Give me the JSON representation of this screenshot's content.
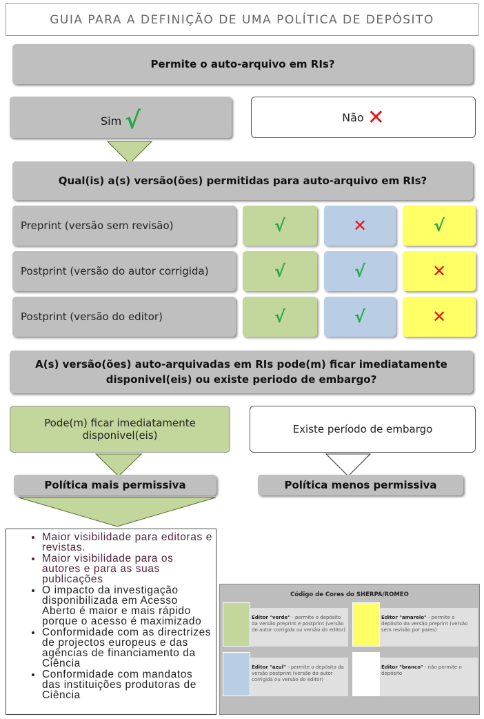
{
  "title": "GUIA PARA A DEFINIÇÃO DE UMA POLÍTICA DE DEPÓSITO",
  "q1": "Permite o auto-arquivo em RIs?",
  "yes": "Sim",
  "no": "Não",
  "check_symbol": "√",
  "cross_symbol": "✕",
  "q2": "Qual(is) a(s) versão(ões) permitidas para auto-arquivo em RIs?",
  "rows": [
    {
      "label": "Preprint (versão sem revisão)",
      "green": "√",
      "blue": "✕",
      "yellow": "√"
    },
    {
      "label": "Postprint (versão do autor corrigida)",
      "green": "√",
      "blue": "√",
      "yellow": "✕"
    },
    {
      "label": "Postprint (versão do editor)",
      "green": "√",
      "blue": "√",
      "yellow": "✕"
    }
  ],
  "q3": "A(s) versão(ões) auto-arquivadas em RIs pode(m) ficar imediatamente disponivel(eis) ou existe periodo de embargo?",
  "immediate": "Pode(m) ficar imediatamente disponivel(eis)",
  "embargo": "Existe período de embargo",
  "policy_more": "Política mais permissiva",
  "policy_less": "Política menos permissiva",
  "benefits": [
    "Maior visibilidade para editoras e revistas.",
    "Maior visibilidade para os autores e para as suas publicações",
    "O impacto da investigação disponibilizada em Acesso Aberto é maior e mais rápido porque o acesso é maximizado",
    "Conformidade com as directrizes de projectos europeus e das agências de financiamento da Ciência",
    "Conformidade com mandatos das instituições produtoras de Ciência"
  ],
  "legend": {
    "title": "Código de Cores do SHERPA/ROMEO",
    "items": [
      {
        "name": "Editor \"verde\"",
        "desc": " - permite o depósito da versão preprint e postprint (versão do autor corrigida ou versão do editor)",
        "color": "#c3d69b"
      },
      {
        "name": "Editor \"amarelo\"",
        "desc": " - permite o depósito da versão preprint (versão sem revisão por pares)",
        "color": "#ffff66"
      },
      {
        "name": "Editor \"azul\"",
        "desc": " - permite o depósito da versão postprint (versão do autor corrigida ou versão do editor)",
        "color": "#b9cde5"
      },
      {
        "name": "Editor \"branco\"",
        "desc": " - não permite o depósito",
        "color": "#ffffff"
      }
    ]
  },
  "colors": {
    "green": "#c3d69b",
    "blue": "#b9cde5",
    "yellow": "#ffff66",
    "gray": "#bfbfbf"
  }
}
